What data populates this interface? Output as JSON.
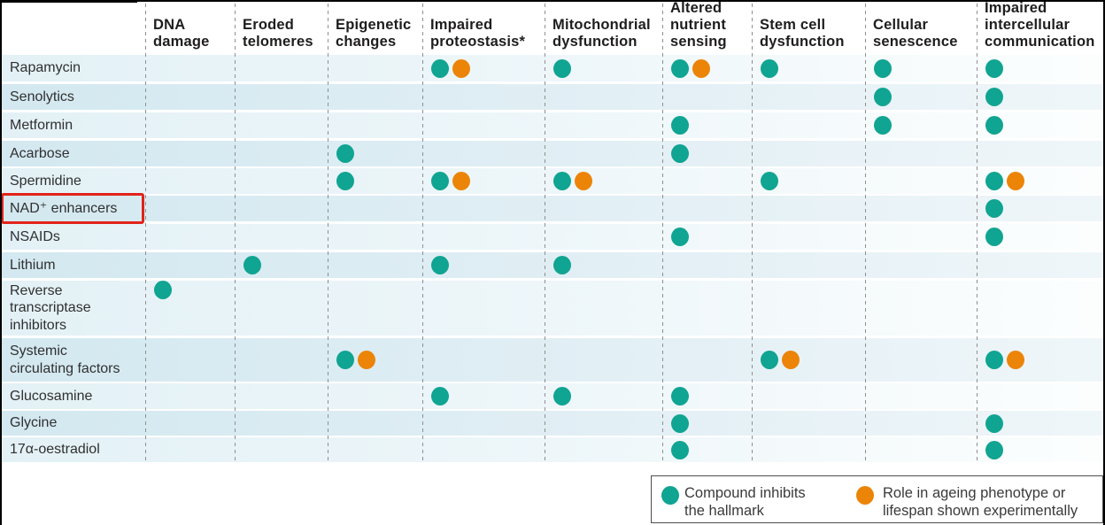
{
  "chart_data": {
    "type": "matrix",
    "description": "Compounds (rows) versus hallmarks of ageing (columns)",
    "columns": [
      "DNA\ndamage",
      "Eroded\ntelomeres",
      "Epigenetic\nchanges",
      "Impaired\nproteostasis*",
      "Mitochondrial\ndysfunction",
      "Altered\nnutrient\nsensing",
      "Stem cell\ndysfunction",
      "Cellular\nsenescence",
      "Impaired\nintercellular\ncommunication"
    ],
    "rows": [
      {
        "label": "Rapamycin",
        "marks": [
          [],
          [],
          [],
          [
            "inhibits",
            "experimental"
          ],
          [
            "inhibits"
          ],
          [
            "inhibits",
            "experimental"
          ],
          [
            "inhibits"
          ],
          [
            "inhibits"
          ],
          [
            "inhibits"
          ]
        ]
      },
      {
        "label": "Senolytics",
        "marks": [
          [],
          [],
          [],
          [],
          [],
          [],
          [],
          [
            "inhibits"
          ],
          [
            "inhibits"
          ]
        ]
      },
      {
        "label": "Metformin",
        "marks": [
          [],
          [],
          [],
          [],
          [],
          [
            "inhibits"
          ],
          [],
          [
            "inhibits"
          ],
          [
            "inhibits"
          ]
        ]
      },
      {
        "label": "Acarbose",
        "marks": [
          [],
          [],
          [
            "inhibits"
          ],
          [],
          [],
          [
            "inhibits"
          ],
          [],
          [],
          []
        ]
      },
      {
        "label": "Spermidine",
        "marks": [
          [],
          [],
          [
            "inhibits"
          ],
          [
            "inhibits",
            "experimental"
          ],
          [
            "inhibits",
            "experimental"
          ],
          [],
          [
            "inhibits"
          ],
          [],
          [
            "inhibits",
            "experimental"
          ]
        ]
      },
      {
        "label": "NAD⁺ enhancers",
        "highlight": true,
        "marks": [
          [],
          [],
          [],
          [],
          [],
          [],
          [],
          [],
          [
            "inhibits"
          ]
        ]
      },
      {
        "label": "NSAIDs",
        "marks": [
          [],
          [],
          [],
          [],
          [],
          [
            "inhibits"
          ],
          [],
          [],
          [
            "inhibits"
          ]
        ]
      },
      {
        "label": "Lithium",
        "marks": [
          [],
          [
            "inhibits"
          ],
          [],
          [
            "inhibits"
          ],
          [
            "inhibits"
          ],
          [],
          [],
          [],
          []
        ]
      },
      {
        "label": "Reverse\ntranscriptase\ninhibitors",
        "marks": [
          [
            "inhibits"
          ],
          [],
          [],
          [],
          [],
          [],
          [],
          [],
          []
        ]
      },
      {
        "label": "Systemic\ncirculating factors",
        "marks": [
          [],
          [],
          [
            "inhibits",
            "experimental"
          ],
          [],
          [],
          [],
          [
            "inhibits",
            "experimental"
          ],
          [],
          [
            "inhibits",
            "experimental"
          ]
        ]
      },
      {
        "label": "Glucosamine",
        "marks": [
          [],
          [],
          [],
          [
            "inhibits"
          ],
          [
            "inhibits"
          ],
          [
            "inhibits"
          ],
          [],
          [],
          []
        ]
      },
      {
        "label": "Glycine",
        "marks": [
          [],
          [],
          [],
          [],
          [],
          [
            "inhibits"
          ],
          [],
          [],
          [
            "inhibits"
          ]
        ]
      },
      {
        "label": "17α-oestradiol",
        "marks": [
          [],
          [],
          [],
          [],
          [],
          [
            "inhibits"
          ],
          [],
          [],
          [
            "inhibits"
          ]
        ]
      }
    ],
    "highlighted_row": "NAD⁺ enhancers",
    "legend": [
      {
        "key": "inhibits",
        "label": "Compound inhibits\nthe hallmark",
        "color": "#10a492"
      },
      {
        "key": "experimental",
        "label": "Role in ageing phenotype or\nlifespan shown experimentally",
        "color": "#ec8408"
      }
    ]
  },
  "colors": {
    "inhibits_dot": "#10a492",
    "experimental_dot": "#ec8408",
    "row_stripe_light": "#e3f1f6",
    "row_stripe_dark": "#d3e8f0",
    "highlight_box": "#e2231a"
  }
}
